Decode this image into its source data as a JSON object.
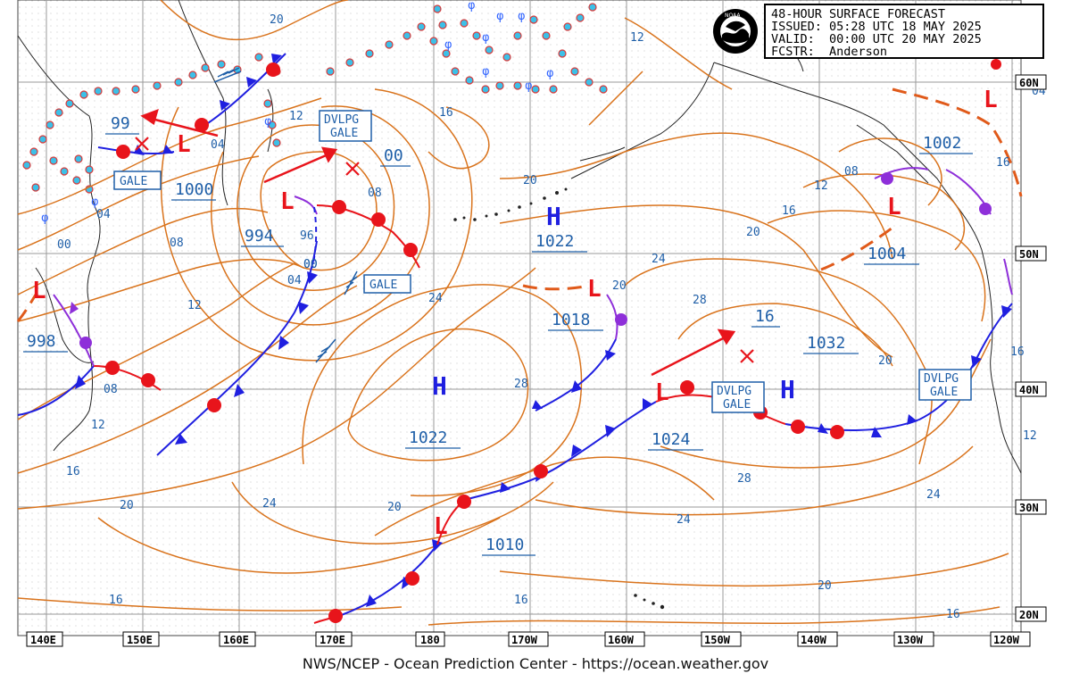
{
  "header": {
    "title": "48-HOUR SURFACE FORECAST",
    "issued": "ISSUED: 05:28 UTC 18 MAY 2025",
    "valid": "VALID:  00:00 UTC 20 MAY 2025",
    "forecaster": "FCSTR:  Anderson",
    "logo_text": "NOAA"
  },
  "footer": {
    "credit": "NWS/NCEP - Ocean Prediction Center - https://ocean.weather.gov"
  },
  "colors": {
    "isobar": "#d9731c",
    "label": "#1f5fa8",
    "low": "#e8141b",
    "cold_front": "#1f1fe0",
    "occluded": "#8e2fd9",
    "ice": "#3cc0e8"
  },
  "longitude_labels": [
    "140E",
    "150E",
    "160E",
    "170E",
    "180",
    "170W",
    "160W",
    "150W",
    "140W",
    "130W",
    "120W"
  ],
  "latitude_labels": [
    "60N",
    "50N",
    "40N",
    "30N",
    "20N"
  ],
  "pressure_centers": [
    {
      "type": "L",
      "value": "99"
    },
    {
      "type": "L",
      "value": "1000"
    },
    {
      "type": "L",
      "value": "994"
    },
    {
      "type": "L",
      "value": "00"
    },
    {
      "type": "L",
      "value": "998"
    },
    {
      "type": "L",
      "value": "1002"
    },
    {
      "type": "L",
      "value": "1004"
    },
    {
      "type": "L",
      "value": "1018"
    },
    {
      "type": "L",
      "value": "1010"
    },
    {
      "type": "L",
      "value": "1024"
    },
    {
      "type": "H",
      "value": "1022"
    },
    {
      "type": "H",
      "value": "1022"
    },
    {
      "type": "H",
      "value": "1032"
    },
    {
      "type": "L",
      "value": "16"
    }
  ],
  "warnings": [
    "GALE",
    "DVLPG GALE",
    "GALE",
    "DVLPG GALE",
    "DVLPG GALE"
  ],
  "isobar_labels": [
    "20",
    "04",
    "00",
    "08",
    "04",
    "12",
    "16",
    "12",
    "08",
    "00",
    "04",
    "08",
    "96",
    "00",
    "12",
    "16",
    "20",
    "24",
    "28",
    "20",
    "24",
    "28",
    "16",
    "20",
    "24",
    "28",
    "20",
    "16",
    "12",
    "16",
    "20",
    "24",
    "04",
    "08",
    "12",
    "16",
    "24",
    "20",
    "16",
    "12",
    "20",
    "16"
  ]
}
